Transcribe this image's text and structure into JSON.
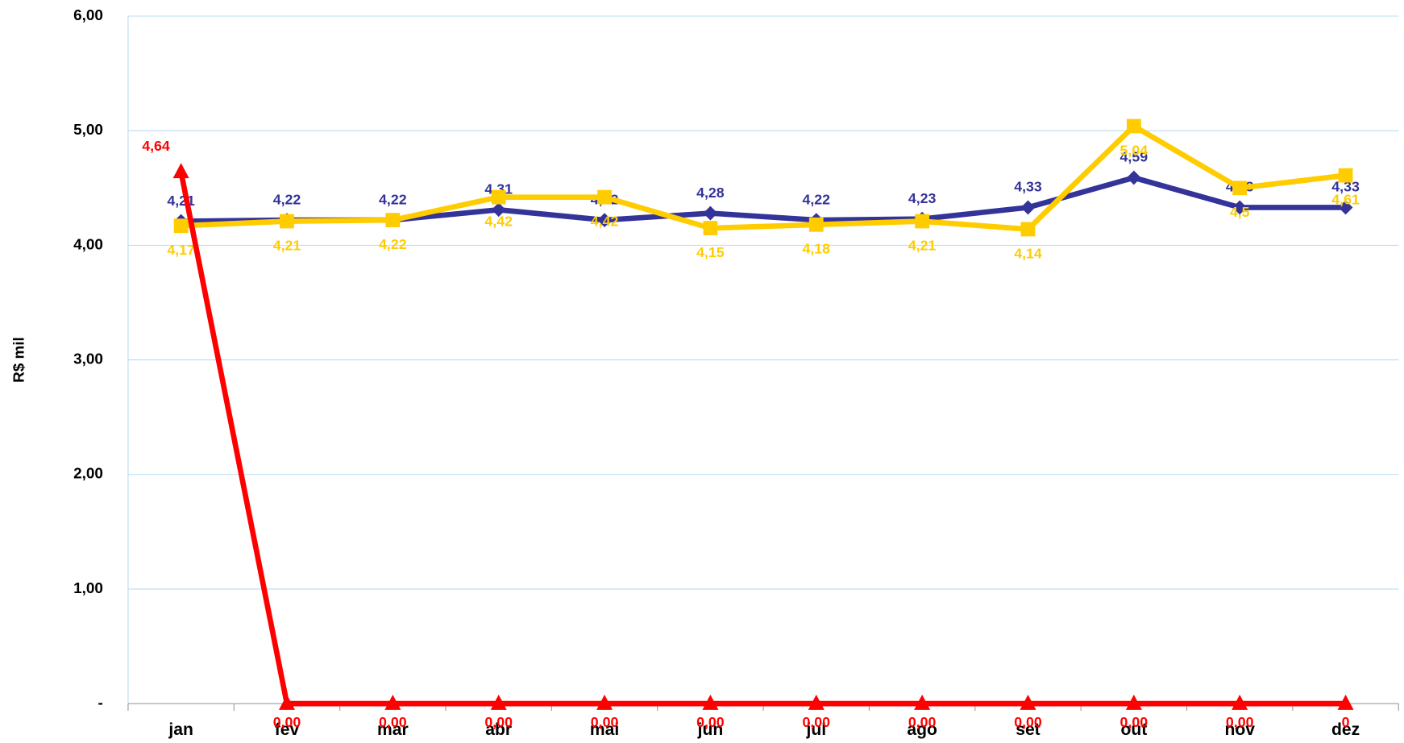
{
  "chart_data": {
    "type": "line",
    "y_label": "R$ mil",
    "categories": [
      "jan",
      "fev",
      "mar",
      "abr",
      "mai",
      "jun",
      "jul",
      "ago",
      "set",
      "out",
      "nov",
      "dez"
    ],
    "ylim": [
      0,
      6
    ],
    "yticks": [
      {
        "value": 0,
        "label": "-"
      },
      {
        "value": 1,
        "label": "1,00"
      },
      {
        "value": 2,
        "label": "2,00"
      },
      {
        "value": 3,
        "label": "3,00"
      },
      {
        "value": 4,
        "label": "4,00"
      },
      {
        "value": 5,
        "label": "5,00"
      },
      {
        "value": 6,
        "label": "6,00"
      }
    ],
    "grid": true,
    "series": [
      {
        "color": "#333399",
        "marker": "diamond",
        "values": [
          4.21,
          4.22,
          4.22,
          4.31,
          4.22,
          4.28,
          4.22,
          4.23,
          4.33,
          4.59,
          4.33,
          4.33
        ],
        "value_labels": [
          "4,21",
          "4,22",
          "4,22",
          "4,31",
          "4,22",
          "4,28",
          "4,22",
          "4,23",
          "4,33",
          "4,59",
          "4,33",
          "4,33"
        ]
      },
      {
        "color": "#ffcc00",
        "marker": "square",
        "values": [
          4.17,
          4.21,
          4.22,
          4.42,
          4.42,
          4.15,
          4.18,
          4.21,
          4.14,
          5.04,
          4.5,
          4.61
        ],
        "value_labels": [
          "4,17",
          "4,21",
          "4,22",
          "4,42",
          "4,42",
          "4,15",
          "4,18",
          "4,21",
          "4,14",
          "5,04",
          "4,5",
          "4,61"
        ]
      },
      {
        "color": "#ff0000",
        "marker": "triangle",
        "values": [
          4.64,
          0,
          0,
          0,
          0,
          0,
          0,
          0,
          0,
          0,
          0,
          0
        ],
        "value_labels": [
          "4,64",
          "0,00",
          "0,00",
          "0,00",
          "0,00",
          "0,00",
          "0,00",
          "0,00",
          "0,00",
          "0,00",
          "0,00",
          "0"
        ]
      }
    ]
  }
}
